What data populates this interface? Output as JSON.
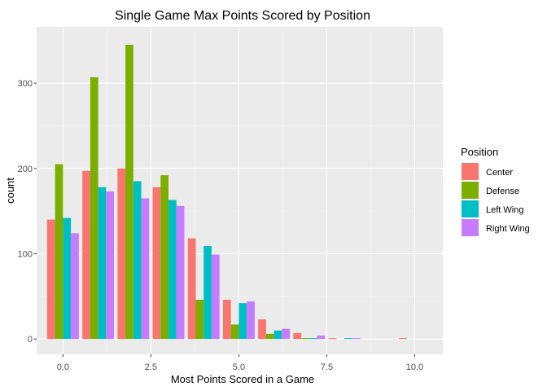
{
  "chart_data": {
    "type": "bar",
    "title": "Single Game Max Points Scored by Position",
    "xlabel": "Most Points Scored in a Game",
    "ylabel": "count",
    "x": [
      0,
      1,
      2,
      3,
      4,
      5,
      6,
      7,
      8,
      10
    ],
    "xlim": [
      -0.75,
      10.8
    ],
    "ylim": [
      -18,
      366
    ],
    "x_ticks": [
      0,
      2.5,
      5,
      7.5,
      10
    ],
    "x_tick_labels": [
      "0.0",
      "2.5",
      "5.0",
      "7.5",
      "10.0"
    ],
    "y_ticks": [
      0,
      100,
      200,
      300
    ],
    "y_tick_labels": [
      "0",
      "100",
      "200",
      "300"
    ],
    "grid": true,
    "legend": {
      "title": "Position",
      "placement": "right"
    },
    "series": [
      {
        "name": "Center",
        "color": "#F8766D",
        "values": [
          140,
          197,
          200,
          178,
          118,
          46,
          23,
          7,
          1,
          1
        ]
      },
      {
        "name": "Defense",
        "color": "#7CAE00",
        "values": [
          205,
          307,
          345,
          192,
          46,
          17,
          6,
          1,
          0,
          0
        ]
      },
      {
        "name": "Left Wing",
        "color": "#00BFC4",
        "values": [
          142,
          178,
          185,
          163,
          109,
          42,
          10,
          1,
          1,
          0
        ]
      },
      {
        "name": "Right Wing",
        "color": "#C77CFF",
        "values": [
          124,
          173,
          165,
          156,
          99,
          44,
          12,
          4,
          1,
          0
        ]
      }
    ]
  }
}
